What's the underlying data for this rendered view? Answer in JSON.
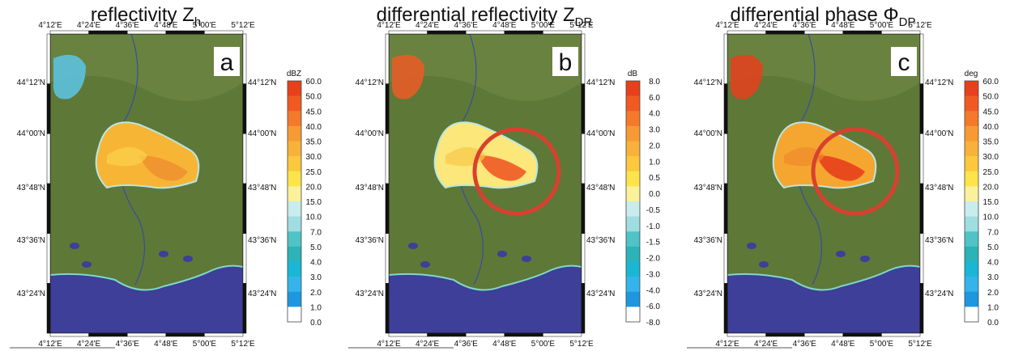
{
  "panels": [
    {
      "title": {
        "text": "reflectivity Z",
        "sub": "h"
      },
      "letter": "a",
      "lon_labels": [
        "4°12'E",
        "4°24'E",
        "4°36'E",
        "4°48'E",
        "5°00'E",
        "5°12'E"
      ],
      "lat_labels": [
        "44°12'N",
        "44°00'N",
        "43°48'N",
        "43°36'N",
        "43°24'N"
      ],
      "colorbar": {
        "unit": "dBZ",
        "labels": [
          "60.0",
          "50.0",
          "45.0",
          "40.0",
          "35.0",
          "30.0",
          "25.0",
          "20.0",
          "15.0",
          "10.0",
          "7.0",
          "5.0",
          "4.0",
          "3.0",
          "2.0",
          "1.0",
          "0.0"
        ]
      }
    },
    {
      "title": {
        "text": "differential reflectivity Z",
        "sub": "DR"
      },
      "letter": "b",
      "lon_labels": [
        "4°12'E",
        "4°24'E",
        "4°36'E",
        "4°48'E",
        "5°00'E",
        "5°12'E"
      ],
      "lat_labels": [
        "44°12'N",
        "44°00'N",
        "43°48'N",
        "43°36'N",
        "43°24'N"
      ],
      "colorbar": {
        "unit": "dB",
        "labels": [
          "8.0",
          "6.0",
          "4.0",
          "3.0",
          "2.0",
          "1.0",
          "0.5",
          "0.0",
          "-0.5",
          "-1.0",
          "-1.5",
          "-2.0",
          "-3.0",
          "-4.0",
          "-6.0",
          "-8.0"
        ]
      }
    },
    {
      "title": {
        "text": "differential phase Φ",
        "sub": "DP"
      },
      "letter": "c",
      "lon_labels": [
        "4°12'E",
        "4°24'E",
        "4°36'E",
        "4°48'E",
        "5°00'E",
        "5°12'E"
      ],
      "lat_labels": [
        "44°12'N",
        "44°00'N",
        "43°48'N",
        "43°36'N",
        "43°24'N"
      ],
      "colorbar": {
        "unit": "deg",
        "labels": [
          "60.0",
          "50.0",
          "45.0",
          "40.0",
          "35.0",
          "30.0",
          "25.0",
          "20.0",
          "15.0",
          "10.0",
          "7.0",
          "5.0",
          "4.0",
          "3.0",
          "2.0",
          "1.0",
          "0.0"
        ]
      }
    }
  ]
}
